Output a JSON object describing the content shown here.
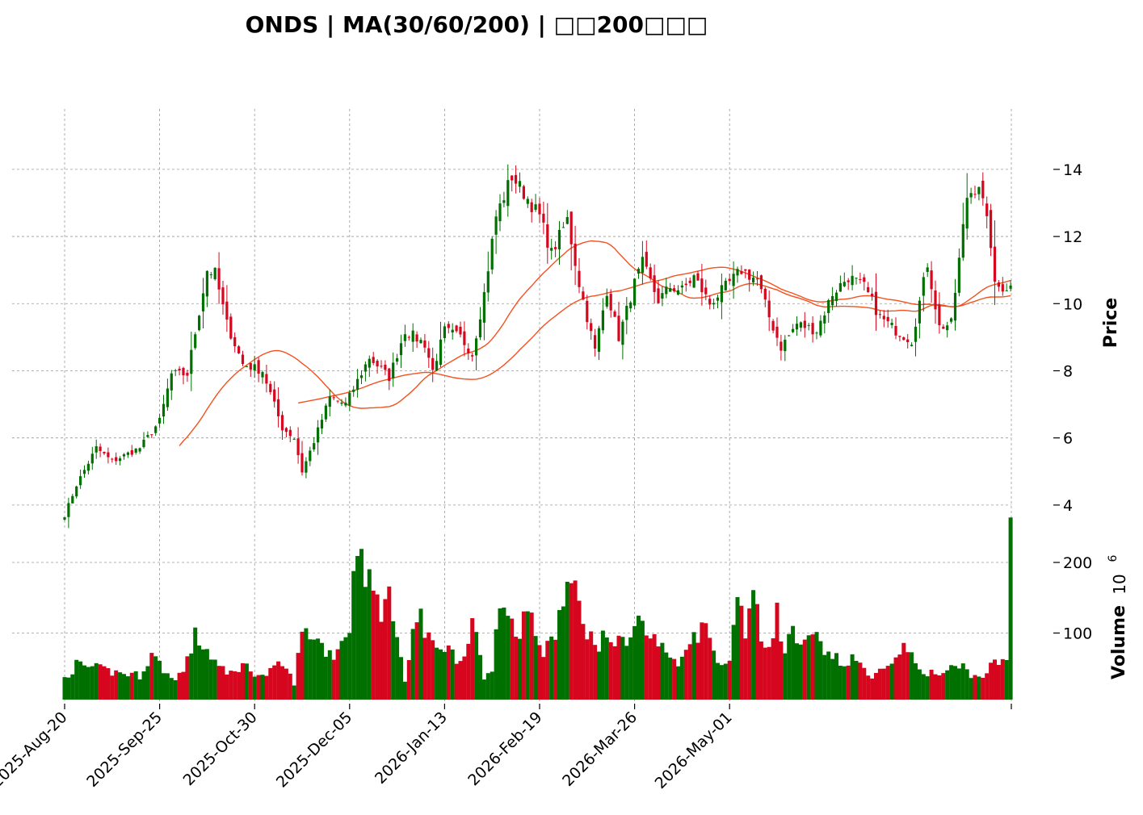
{
  "chart_data": {
    "type": "candlestick",
    "title": "ONDS  |  MA(30/60/200)  |  □□200□□□",
    "ylabel": "Price",
    "volume_label": "Volume",
    "volume_multiplier": "10",
    "volume_exponent": "6",
    "grid": true,
    "price_ylim": [
      3.3,
      15.8
    ],
    "price_ticks": [
      4,
      6,
      8,
      10,
      12,
      14
    ],
    "volume_ylim": [
      0,
      240
    ],
    "volume_ticks": [
      100,
      200
    ],
    "x_tick_labels": [
      "2025-Aug-20",
      "2025-Sep-25",
      "2025-Oct-30",
      "2025-Dec-05",
      "2026-Jan-13",
      "2026-Feb-19",
      "2026-Mar-26",
      "2026-May-01"
    ],
    "x_tick_index_step": 24,
    "colors": {
      "up": "#007000",
      "down": "#d5061d",
      "ma": "#f4511e",
      "grid": "#9a9a9a"
    },
    "ma_start": [
      {
        "name": "MA30",
        "start_index": 29
      },
      {
        "name": "MA60",
        "start_index": 59
      }
    ],
    "anchors": [
      [
        0,
        3.7
      ],
      [
        3,
        4.6
      ],
      [
        8,
        5.7
      ],
      [
        12,
        5.3
      ],
      [
        19,
        5.7
      ],
      [
        24,
        6.5
      ],
      [
        27,
        7.9
      ],
      [
        31,
        7.9
      ],
      [
        36,
        11.0
      ],
      [
        38,
        10.9
      ],
      [
        41,
        9.4
      ],
      [
        45,
        8.2
      ],
      [
        50,
        8.0
      ],
      [
        55,
        6.3
      ],
      [
        58,
        6.0
      ],
      [
        60,
        5.0
      ],
      [
        63,
        5.9
      ],
      [
        67,
        7.2
      ],
      [
        71,
        7.0
      ],
      [
        77,
        8.4
      ],
      [
        82,
        7.8
      ],
      [
        86,
        9.2
      ],
      [
        91,
        8.8
      ],
      [
        93,
        8.0
      ],
      [
        96,
        9.2
      ],
      [
        100,
        9.0
      ],
      [
        103,
        8.5
      ],
      [
        106,
        10.3
      ],
      [
        109,
        12.6
      ],
      [
        113,
        13.8
      ],
      [
        116,
        13.3
      ],
      [
        120,
        12.6
      ],
      [
        123,
        11.5
      ],
      [
        127,
        12.5
      ],
      [
        130,
        10.6
      ],
      [
        134,
        8.6
      ],
      [
        137,
        10.4
      ],
      [
        140,
        9.0
      ],
      [
        144,
        10.6
      ],
      [
        146,
        11.2
      ],
      [
        150,
        10.1
      ],
      [
        153,
        10.5
      ],
      [
        156,
        10.4
      ],
      [
        159,
        10.8
      ],
      [
        163,
        10.0
      ],
      [
        167,
        10.5
      ],
      [
        171,
        11.0
      ],
      [
        175,
        10.7
      ],
      [
        178,
        9.6
      ],
      [
        181,
        8.7
      ],
      [
        185,
        9.4
      ],
      [
        190,
        9.2
      ],
      [
        194,
        10.3
      ],
      [
        198,
        10.8
      ],
      [
        202,
        10.5
      ],
      [
        206,
        9.6
      ],
      [
        210,
        9.2
      ],
      [
        214,
        8.9
      ],
      [
        218,
        11.2
      ],
      [
        221,
        9.3
      ],
      [
        224,
        9.4
      ],
      [
        228,
        13.2
      ],
      [
        231,
        13.6
      ],
      [
        234,
        11.8
      ],
      [
        235,
        10.5
      ]
    ],
    "volume_anchors": [
      [
        0,
        36
      ],
      [
        3,
        55
      ],
      [
        8,
        50
      ],
      [
        12,
        45
      ],
      [
        19,
        40
      ],
      [
        22,
        70
      ],
      [
        27,
        35
      ],
      [
        30,
        45
      ],
      [
        33,
        95
      ],
      [
        36,
        76
      ],
      [
        38,
        60
      ],
      [
        41,
        40
      ],
      [
        45,
        55
      ],
      [
        50,
        38
      ],
      [
        55,
        56
      ],
      [
        58,
        30
      ],
      [
        60,
        100
      ],
      [
        63,
        98
      ],
      [
        66,
        75
      ],
      [
        68,
        70
      ],
      [
        72,
        110
      ],
      [
        74,
        236
      ],
      [
        77,
        170
      ],
      [
        80,
        135
      ],
      [
        82,
        145
      ],
      [
        84,
        110
      ],
      [
        86,
        30
      ],
      [
        88,
        96
      ],
      [
        90,
        140
      ],
      [
        91,
        92
      ],
      [
        93,
        86
      ],
      [
        96,
        82
      ],
      [
        100,
        60
      ],
      [
        103,
        115
      ],
      [
        106,
        35
      ],
      [
        108,
        50
      ],
      [
        110,
        158
      ],
      [
        112,
        140
      ],
      [
        114,
        86
      ],
      [
        116,
        130
      ],
      [
        118,
        120
      ],
      [
        121,
        68
      ],
      [
        124,
        100
      ],
      [
        127,
        170
      ],
      [
        129,
        155
      ],
      [
        131,
        120
      ],
      [
        134,
        80
      ],
      [
        137,
        96
      ],
      [
        140,
        85
      ],
      [
        143,
        99
      ],
      [
        145,
        120
      ],
      [
        147,
        100
      ],
      [
        150,
        85
      ],
      [
        153,
        65
      ],
      [
        156,
        60
      ],
      [
        158,
        98
      ],
      [
        160,
        100
      ],
      [
        162,
        110
      ],
      [
        164,
        75
      ],
      [
        166,
        60
      ],
      [
        168,
        55
      ],
      [
        170,
        172
      ],
      [
        172,
        100
      ],
      [
        174,
        160
      ],
      [
        176,
        88
      ],
      [
        178,
        84
      ],
      [
        180,
        130
      ],
      [
        182,
        68
      ],
      [
        184,
        110
      ],
      [
        186,
        74
      ],
      [
        188,
        90
      ],
      [
        190,
        95
      ],
      [
        192,
        65
      ],
      [
        194,
        70
      ],
      [
        196,
        55
      ],
      [
        198,
        60
      ],
      [
        200,
        62
      ],
      [
        203,
        40
      ],
      [
        206,
        45
      ],
      [
        209,
        50
      ],
      [
        212,
        95
      ],
      [
        215,
        50
      ],
      [
        218,
        45
      ],
      [
        221,
        40
      ],
      [
        224,
        50
      ],
      [
        227,
        52
      ],
      [
        230,
        38
      ],
      [
        232,
        40
      ],
      [
        234,
        52
      ],
      [
        236,
        60
      ],
      [
        238,
        56
      ],
      [
        239,
        270
      ],
      [
        240,
        150
      ],
      [
        242,
        50
      ],
      [
        244,
        42
      ],
      [
        246,
        46
      ],
      [
        248,
        90
      ],
      [
        249,
        272
      ],
      [
        250,
        150
      ],
      [
        252,
        87
      ],
      [
        254,
        60
      ],
      [
        255,
        62
      ],
      [
        256,
        62
      ]
    ]
  }
}
